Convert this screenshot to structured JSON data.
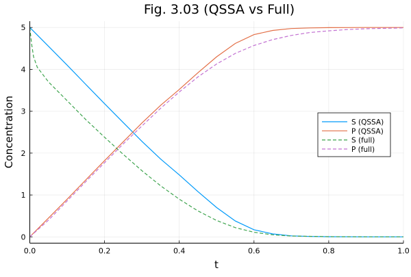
{
  "chart_data": {
    "type": "line",
    "title": "Fig. 3.03 (QSSA vs Full)",
    "xlabel": "t",
    "ylabel": "Concentration",
    "xlim": [
      0,
      1
    ],
    "ylim": [
      -0.15,
      5.15
    ],
    "xticks": [
      0,
      0.2,
      0.4,
      0.6,
      0.8,
      1
    ],
    "xtick_labels": [
      "0.0",
      "0.2",
      "0.4",
      "0.6",
      "0.8",
      "1.0"
    ],
    "yticks": [
      0,
      1,
      2,
      3,
      4,
      5
    ],
    "ytick_labels": [
      "0",
      "1",
      "2",
      "3",
      "4",
      "5"
    ],
    "grid": true,
    "legend_position": "right",
    "series": [
      {
        "name": "S (QSSA)",
        "color": "#009AFA",
        "dash": false,
        "x": [
          0,
          0.05,
          0.1,
          0.15,
          0.2,
          0.25,
          0.3,
          0.35,
          0.4,
          0.45,
          0.5,
          0.55,
          0.6,
          0.65,
          0.7,
          0.75,
          0.8,
          0.9,
          1.0
        ],
        "y": [
          5,
          4.55,
          4.1,
          3.64,
          3.18,
          2.73,
          2.28,
          1.86,
          1.48,
          1.08,
          0.7,
          0.38,
          0.17,
          0.07,
          0.025,
          0.01,
          0.003,
          0,
          0
        ]
      },
      {
        "name": "P (QSSA)",
        "color": "#E36F47",
        "dash": false,
        "x": [
          0,
          0.05,
          0.1,
          0.15,
          0.2,
          0.25,
          0.3,
          0.35,
          0.4,
          0.45,
          0.5,
          0.55,
          0.6,
          0.65,
          0.7,
          0.75,
          0.8,
          0.9,
          1.0
        ],
        "y": [
          0,
          0.45,
          0.9,
          1.36,
          1.82,
          2.27,
          2.72,
          3.14,
          3.52,
          3.92,
          4.3,
          4.62,
          4.83,
          4.93,
          4.975,
          4.99,
          4.997,
          5,
          5
        ]
      },
      {
        "name": "S (full)",
        "color": "#3EA44E",
        "dash": true,
        "x": [
          0,
          0.005,
          0.01,
          0.02,
          0.05,
          0.1,
          0.15,
          0.2,
          0.25,
          0.3,
          0.35,
          0.4,
          0.45,
          0.5,
          0.55,
          0.6,
          0.65,
          0.7,
          0.8,
          0.9,
          1.0
        ],
        "y": [
          5,
          4.6,
          4.3,
          4.05,
          3.7,
          3.25,
          2.8,
          2.38,
          1.97,
          1.58,
          1.22,
          0.9,
          0.62,
          0.39,
          0.22,
          0.11,
          0.05,
          0.02,
          0.005,
          0,
          0
        ]
      },
      {
        "name": "P (full)",
        "color": "#C271D2",
        "dash": true,
        "x": [
          0,
          0.05,
          0.1,
          0.15,
          0.2,
          0.25,
          0.3,
          0.35,
          0.4,
          0.45,
          0.5,
          0.55,
          0.6,
          0.65,
          0.7,
          0.75,
          0.8,
          0.85,
          0.9,
          0.95,
          1.0
        ],
        "y": [
          0,
          0.4,
          0.86,
          1.32,
          1.77,
          2.22,
          2.65,
          3.07,
          3.46,
          3.82,
          4.13,
          4.38,
          4.57,
          4.71,
          4.81,
          4.88,
          4.92,
          4.95,
          4.97,
          4.98,
          4.99
        ]
      }
    ]
  }
}
